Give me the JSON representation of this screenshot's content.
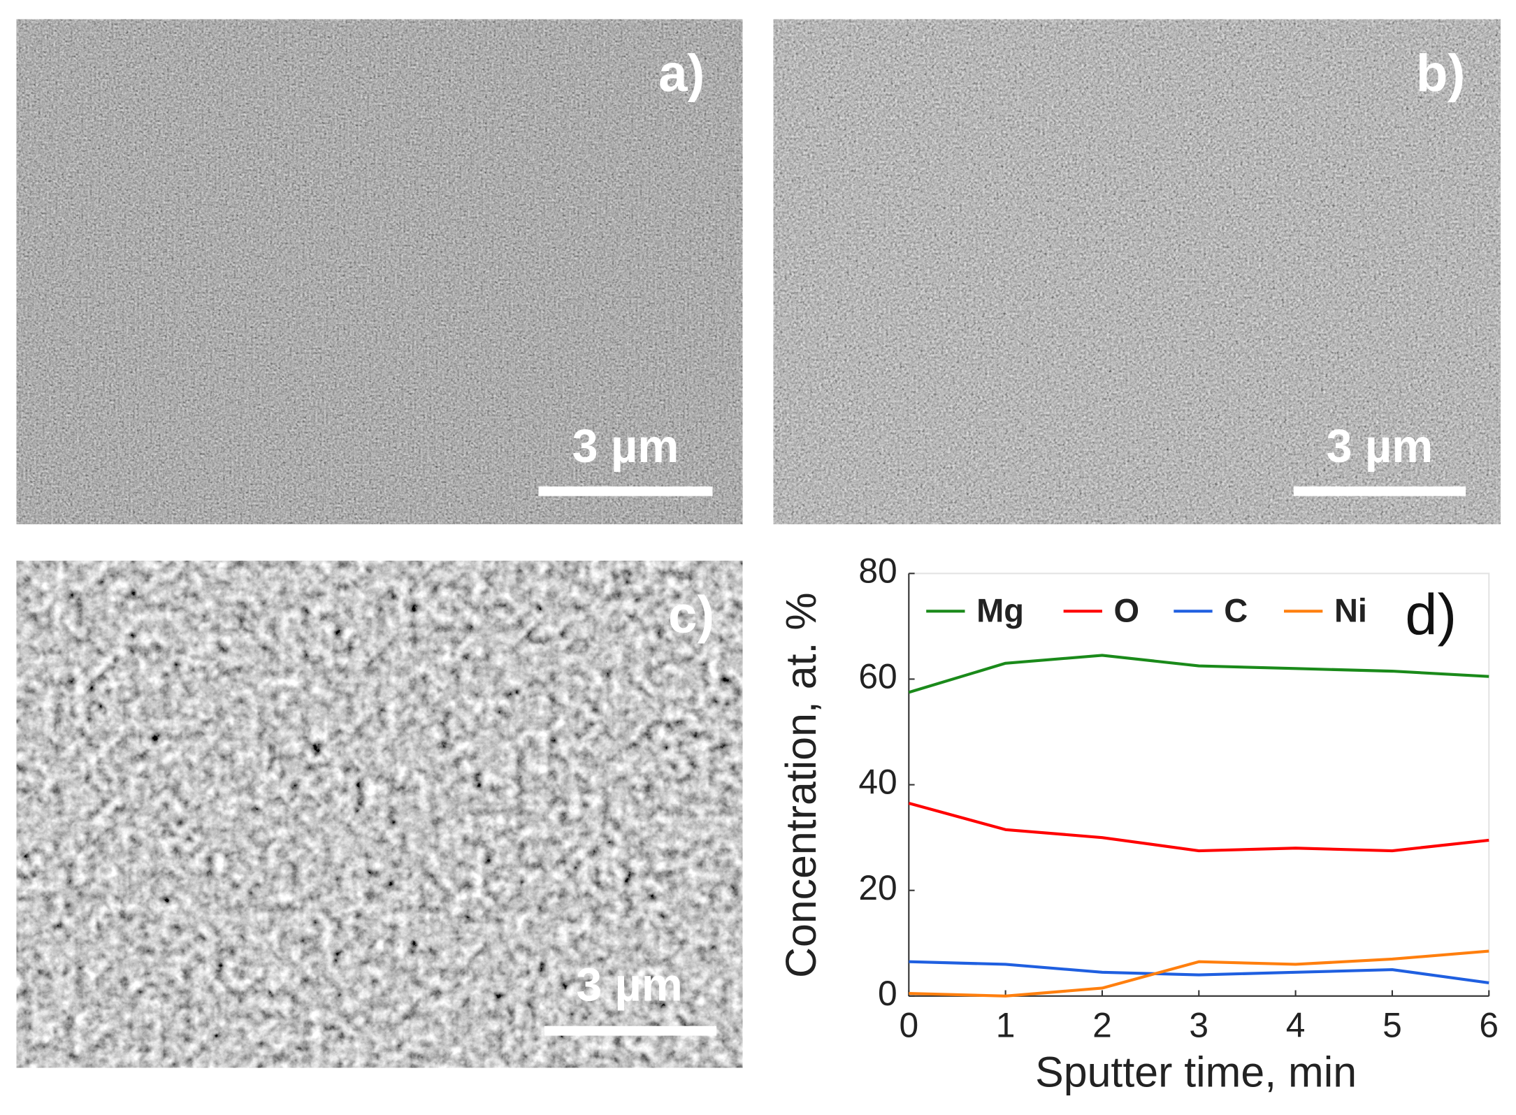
{
  "panels": [
    {
      "label": "a)",
      "scale_bar": "3 µm"
    },
    {
      "label": "b)",
      "scale_bar": "3 µm"
    },
    {
      "label": "c)",
      "scale_bar": "3 µm"
    }
  ],
  "chart_data": {
    "type": "line",
    "annotation": "d)",
    "x_label": "Sputter time, min",
    "y_label": "Concentration, at. %",
    "x": [
      0,
      1,
      2,
      3,
      4,
      5,
      6
    ],
    "series": [
      {
        "name": "Mg",
        "color": "#1a8a1a",
        "values": [
          57.5,
          63,
          64.5,
          62.5,
          62,
          61.5,
          60.5
        ]
      },
      {
        "name": "O",
        "color": "#ff0000",
        "values": [
          36.5,
          31.5,
          30,
          27.5,
          28,
          27.5,
          29.5
        ]
      },
      {
        "name": "C",
        "color": "#1f5fe0",
        "values": [
          6.5,
          6,
          4.5,
          4,
          4.5,
          5,
          2.5
        ]
      },
      {
        "name": "Ni",
        "color": "#ff7f0e",
        "values": [
          0.5,
          0,
          1.5,
          6.5,
          6,
          7,
          8.5
        ]
      }
    ],
    "xlim": [
      0,
      6
    ],
    "xticks": [
      0,
      1,
      2,
      3,
      4,
      5,
      6
    ],
    "ylim": [
      0,
      80
    ],
    "yticks": [
      0,
      20,
      40,
      60,
      80
    ],
    "grid": false,
    "legend": "top"
  }
}
